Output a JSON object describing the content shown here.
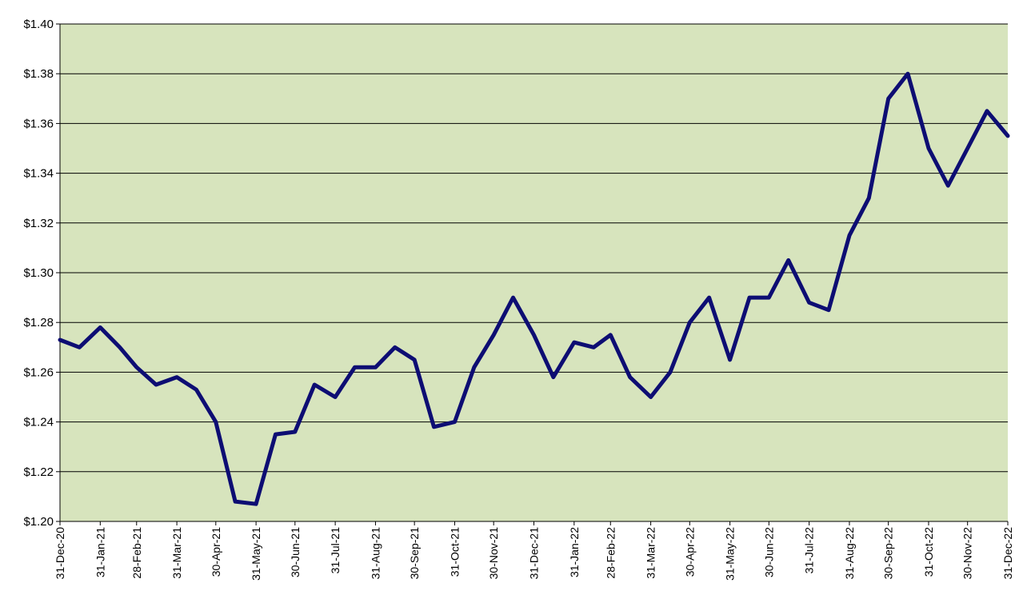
{
  "chart_data": {
    "type": "line",
    "title": "",
    "xlabel": "",
    "ylabel": "",
    "ylim": [
      1.2,
      1.4
    ],
    "y_tick_labels": [
      "$1.20",
      "$1.22",
      "$1.24",
      "$1.26",
      "$1.28",
      "$1.30",
      "$1.32",
      "$1.34",
      "$1.36",
      "$1.38",
      "$1.40"
    ],
    "x_tick_labels": [
      "31-Dec-20",
      "31-Jan-21",
      "28-Feb-21",
      "31-Mar-21",
      "30-Apr-21",
      "31-May-21",
      "30-Jun-21",
      "31-Jul-21",
      "31-Aug-21",
      "30-Sep-21",
      "31-Oct-21",
      "30-Nov-21",
      "31-Dec-21",
      "31-Jan-22",
      "28-Feb-22",
      "31-Mar-22",
      "30-Apr-22",
      "31-May-22",
      "30-Jun-22",
      "31-Jul-22",
      "31-Aug-22",
      "30-Sep-22",
      "31-Oct-22",
      "30-Nov-22",
      "31-Dec-22"
    ],
    "grid": true,
    "colors": {
      "plot_background": "#d7e4bd",
      "line": "#0d0d73",
      "grid": "#000000"
    },
    "series": [
      {
        "x": [
          "31-Dec-20",
          "15-Jan-21",
          "31-Jan-21",
          "15-Feb-21",
          "28-Feb-21",
          "15-Mar-21",
          "31-Mar-21",
          "15-Apr-21",
          "30-Apr-21",
          "15-May-21",
          "31-May-21",
          "15-Jun-21",
          "30-Jun-21",
          "15-Jul-21",
          "31-Jul-21",
          "15-Aug-21",
          "31-Aug-21",
          "15-Sep-21",
          "30-Sep-21",
          "15-Oct-21",
          "31-Oct-21",
          "15-Nov-21",
          "30-Nov-21",
          "15-Dec-21",
          "31-Dec-21",
          "15-Jan-22",
          "31-Jan-22",
          "15-Feb-22",
          "28-Feb-22",
          "15-Mar-22",
          "31-Mar-22",
          "15-Apr-22",
          "30-Apr-22",
          "15-May-22",
          "31-May-22",
          "15-Jun-22",
          "30-Jun-22",
          "15-Jul-22",
          "31-Jul-22",
          "15-Aug-22",
          "31-Aug-22",
          "15-Sep-22",
          "30-Sep-22",
          "15-Oct-22",
          "31-Oct-22",
          "15-Nov-22",
          "30-Nov-22",
          "15-Dec-22",
          "31-Dec-22"
        ],
        "values": [
          1.273,
          1.27,
          1.278,
          1.27,
          1.262,
          1.255,
          1.258,
          1.253,
          1.24,
          1.208,
          1.207,
          1.235,
          1.236,
          1.255,
          1.25,
          1.262,
          1.262,
          1.27,
          1.265,
          1.238,
          1.24,
          1.262,
          1.275,
          1.29,
          1.275,
          1.258,
          1.272,
          1.27,
          1.275,
          1.258,
          1.25,
          1.26,
          1.28,
          1.29,
          1.265,
          1.29,
          1.29,
          1.305,
          1.288,
          1.285,
          1.315,
          1.33,
          1.37,
          1.38,
          1.35,
          1.335,
          1.35,
          1.365,
          1.355
        ]
      }
    ]
  }
}
